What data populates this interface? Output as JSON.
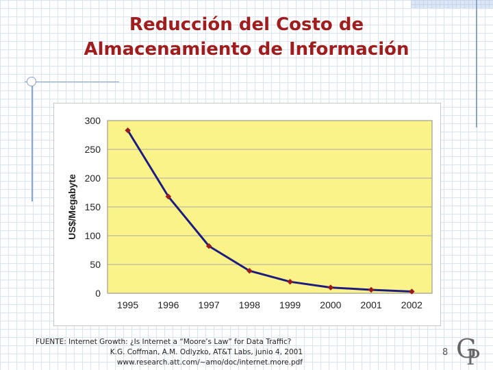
{
  "slide": {
    "title_lines": [
      "Reducción del Costo de",
      "Almacenamiento de Información"
    ],
    "source_lines": [
      "FUENTE: Internet Growth: ¿Is Internet a “Moore’s Law” for Data Traffic?",
      "K.G. Coffman, A.M. Odlyzko, AT&T Labs, junio 4, 2001",
      "www.research.att.com/~amo/doc/internet.more.pdf"
    ],
    "page_number": "8",
    "logo_text": "GP"
  },
  "colors": {
    "title": "#a01d1d",
    "plot_background": "#fbf38a",
    "line": "#1b1c7e",
    "marker": "#9b1b1b"
  },
  "chart_data": {
    "type": "line",
    "categories": [
      "1995",
      "1996",
      "1997",
      "1998",
      "1999",
      "2000",
      "2001",
      "2002"
    ],
    "values": [
      283,
      168,
      82,
      39,
      20,
      10,
      6,
      3
    ],
    "ylabel": "US$/Megabyte",
    "xlabel": "",
    "ylim": [
      0,
      300
    ],
    "yticks": [
      0,
      50,
      100,
      150,
      200,
      250,
      300
    ],
    "grid": "horizontal",
    "legend": "none"
  }
}
